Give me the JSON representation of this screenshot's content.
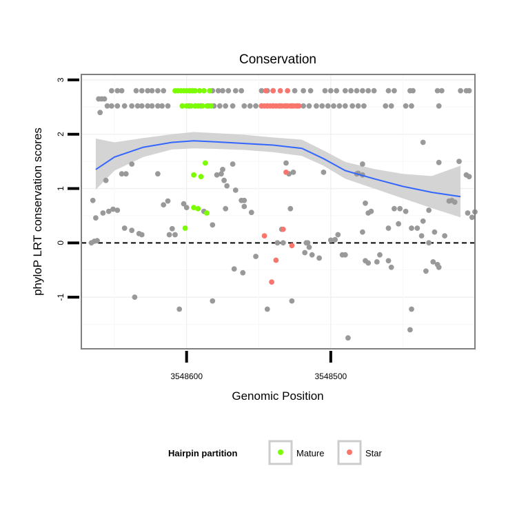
{
  "chart_data": {
    "type": "scatter",
    "title": "Conservation",
    "xlabel": "Genomic Position",
    "ylabel": "phyloP LRT conservation scores",
    "x_reversed": true,
    "xlim": [
      3548673,
      3548400
    ],
    "ylim": [
      -1.95,
      3.1
    ],
    "x_ticks": [
      {
        "value": 3548600,
        "label": "3548600"
      },
      {
        "value": 3548500,
        "label": "3548500"
      }
    ],
    "y_ticks": [
      {
        "value": 3,
        "label": "3"
      },
      {
        "value": 2,
        "label": "2"
      },
      {
        "value": 1,
        "label": "1"
      },
      {
        "value": 0,
        "label": "0"
      },
      {
        "value": -1,
        "label": "-1"
      }
    ],
    "reference_line": {
      "y": 0,
      "style": "dashed"
    },
    "grid": true,
    "colors": {
      "other": "#999999",
      "mature": "#7cfc00",
      "star": "#f8766d",
      "smooth": "#3366ff",
      "ribbon": "#cccccc"
    },
    "legend": {
      "title": "Hairpin partition",
      "placement": "bottom",
      "entries": [
        {
          "label": "Mature",
          "color": "#7cfc00"
        },
        {
          "label": "Star",
          "color": "#f8766d"
        }
      ]
    },
    "smooth": {
      "x": [
        3548663,
        3548650,
        3548630,
        3548610,
        3548595,
        3548580,
        3548560,
        3548540,
        3548520,
        3548505,
        3548490,
        3548470,
        3548450,
        3548430,
        3548410
      ],
      "y": [
        1.35,
        1.58,
        1.76,
        1.85,
        1.88,
        1.86,
        1.83,
        1.8,
        1.74,
        1.55,
        1.33,
        1.18,
        1.04,
        0.93,
        0.85
      ],
      "lower": [
        0.98,
        1.33,
        1.58,
        1.72,
        1.74,
        1.73,
        1.71,
        1.67,
        1.6,
        1.42,
        1.18,
        1.0,
        0.82,
        0.64,
        0.47
      ],
      "upper": [
        1.92,
        1.85,
        1.93,
        2.0,
        2.04,
        2.02,
        1.99,
        1.94,
        1.9,
        1.7,
        1.49,
        1.36,
        1.27,
        1.23,
        1.42
      ]
    },
    "series": [
      {
        "key": "other",
        "points": [
          [
            3548661,
            2.65
          ],
          [
            3548659,
            2.65
          ],
          [
            3548657,
            2.65
          ],
          [
            3548660,
            2.4
          ],
          [
            3548655,
            2.52
          ],
          [
            3548652,
            2.52
          ],
          [
            3548648,
            2.52
          ],
          [
            3548643,
            2.52
          ],
          [
            3548638,
            2.52
          ],
          [
            3548634,
            2.52
          ],
          [
            3548631,
            2.52
          ],
          [
            3548627,
            2.52
          ],
          [
            3548624,
            2.52
          ],
          [
            3548620,
            2.52
          ],
          [
            3548617,
            2.52
          ],
          [
            3548613,
            2.52
          ],
          [
            3548603,
            2.52
          ],
          [
            3548598,
            2.52
          ],
          [
            3548594,
            2.52
          ],
          [
            3548590,
            2.52
          ],
          [
            3548585,
            2.52
          ],
          [
            3548581,
            2.52
          ],
          [
            3548577,
            2.52
          ],
          [
            3548573,
            2.52
          ],
          [
            3548568,
            2.52
          ],
          [
            3548560,
            2.52
          ],
          [
            3548556,
            2.52
          ],
          [
            3548552,
            2.52
          ],
          [
            3548548,
            2.52
          ],
          [
            3548544,
            2.52
          ],
          [
            3548540,
            2.52
          ],
          [
            3548535,
            2.52
          ],
          [
            3548531,
            2.52
          ],
          [
            3548527,
            2.52
          ],
          [
            3548523,
            2.52
          ],
          [
            3548519,
            2.52
          ],
          [
            3548515,
            2.52
          ],
          [
            3548510,
            2.52
          ],
          [
            3548506,
            2.52
          ],
          [
            3548502,
            2.52
          ],
          [
            3548498,
            2.52
          ],
          [
            3548494,
            2.52
          ],
          [
            3548490,
            2.52
          ],
          [
            3548485,
            2.52
          ],
          [
            3548481,
            2.52
          ],
          [
            3548477,
            2.52
          ],
          [
            3548462,
            2.52
          ],
          [
            3548458,
            2.52
          ],
          [
            3548448,
            2.52
          ],
          [
            3548444,
            2.52
          ],
          [
            3548425,
            2.52
          ],
          [
            3548652,
            2.8
          ],
          [
            3548648,
            2.8
          ],
          [
            3548645,
            2.8
          ],
          [
            3548635,
            2.8
          ],
          [
            3548631,
            2.8
          ],
          [
            3548627,
            2.8
          ],
          [
            3548624,
            2.8
          ],
          [
            3548620,
            2.8
          ],
          [
            3548616,
            2.8
          ],
          [
            3548598,
            2.8
          ],
          [
            3548596,
            2.8
          ],
          [
            3548582,
            2.8
          ],
          [
            3548578,
            2.8
          ],
          [
            3548575,
            2.8
          ],
          [
            3548571,
            2.8
          ],
          [
            3548566,
            2.8
          ],
          [
            3548562,
            2.8
          ],
          [
            3548548,
            2.8
          ],
          [
            3548544,
            2.8
          ],
          [
            3548540,
            2.8
          ],
          [
            3548525,
            2.8
          ],
          [
            3548519,
            2.8
          ],
          [
            3548514,
            2.8
          ],
          [
            3548504,
            2.8
          ],
          [
            3548500,
            2.8
          ],
          [
            3548496,
            2.8
          ],
          [
            3548490,
            2.8
          ],
          [
            3548486,
            2.8
          ],
          [
            3548482,
            2.8
          ],
          [
            3548478,
            2.8
          ],
          [
            3548474,
            2.8
          ],
          [
            3548470,
            2.8
          ],
          [
            3548460,
            2.8
          ],
          [
            3548456,
            2.8
          ],
          [
            3548445,
            2.8
          ],
          [
            3548443,
            2.8
          ],
          [
            3548426,
            2.8
          ],
          [
            3548423,
            2.8
          ],
          [
            3548410,
            2.8
          ],
          [
            3548406,
            2.8
          ],
          [
            3548404,
            2.8
          ],
          [
            3548665,
            0.78
          ],
          [
            3548663,
            0.46
          ],
          [
            3548664,
            0.03
          ],
          [
            3548662,
            0.04
          ],
          [
            3548666,
            0.0
          ],
          [
            3548658,
            0.55
          ],
          [
            3548654,
            0.58
          ],
          [
            3548651,
            0.62
          ],
          [
            3548648,
            0.6
          ],
          [
            3548656,
            1.15
          ],
          [
            3548645,
            1.27
          ],
          [
            3548642,
            1.27
          ],
          [
            3548638,
            1.45
          ],
          [
            3548643,
            0.27
          ],
          [
            3548638,
            0.23
          ],
          [
            3548633,
            0.17
          ],
          [
            3548631,
            0.15
          ],
          [
            3548636,
            -1.0
          ],
          [
            3548620,
            1.27
          ],
          [
            3548616,
            0.7
          ],
          [
            3548613,
            0.77
          ],
          [
            3548610,
            0.26
          ],
          [
            3548608,
            0.15
          ],
          [
            3548612,
            0.15
          ],
          [
            3548600,
            0.65
          ],
          [
            3548602,
            0.72
          ],
          [
            3548588,
            0.58
          ],
          [
            3548582,
            0.33
          ],
          [
            3548573,
            0.63
          ],
          [
            3548579,
            1.25
          ],
          [
            3548576,
            1.27
          ],
          [
            3548575,
            1.35
          ],
          [
            3548574,
            1.15
          ],
          [
            3548572,
            1.05
          ],
          [
            3548568,
            1.45
          ],
          [
            3548566,
            0.97
          ],
          [
            3548567,
            -0.48
          ],
          [
            3548562,
            0.78
          ],
          [
            3548560,
            0.78
          ],
          [
            3548560,
            0.67
          ],
          [
            3548555,
            0.56
          ],
          [
            3548561,
            -0.55
          ],
          [
            3548552,
            -0.25
          ],
          [
            3548544,
            -1.22
          ],
          [
            3548537,
            0.0
          ],
          [
            3548533,
            0.0
          ],
          [
            3548534,
            0.25
          ],
          [
            3548531,
            1.47
          ],
          [
            3548529,
            1.27
          ],
          [
            3548526,
            1.3
          ],
          [
            3548528,
            0.63
          ],
          [
            3548527,
            -1.07
          ],
          [
            3548518,
            -0.18
          ],
          [
            3548515,
            -0.08
          ],
          [
            3548513,
            -0.22
          ],
          [
            3548516,
            0.0
          ],
          [
            3548517,
            0.0
          ],
          [
            3548508,
            -0.28
          ],
          [
            3548505,
            1.3
          ],
          [
            3548497,
            0.06
          ],
          [
            3548495,
            0.15
          ],
          [
            3548490,
            -0.22
          ],
          [
            3548492,
            -0.22
          ],
          [
            3548482,
            1.27
          ],
          [
            3548478,
            1.25
          ],
          [
            3548481,
            1.28
          ],
          [
            3548478,
            1.45
          ],
          [
            3548476,
            0.73
          ],
          [
            3548474,
            0.55
          ],
          [
            3548472,
            0.58
          ],
          [
            3548476,
            -0.33
          ],
          [
            3548474,
            -0.37
          ],
          [
            3548468,
            -0.35
          ],
          [
            3548466,
            -0.22
          ],
          [
            3548460,
            -0.33
          ],
          [
            3548458,
            -0.45
          ],
          [
            3548460,
            0.27
          ],
          [
            3548456,
            0.63
          ],
          [
            3548453,
            0.35
          ],
          [
            3548452,
            0.63
          ],
          [
            3548448,
            0.58
          ],
          [
            3548444,
            0.27
          ],
          [
            3548440,
            0.27
          ],
          [
            3548437,
            0.13
          ],
          [
            3548436,
            0.4
          ],
          [
            3548434,
            -0.52
          ],
          [
            3548429,
            -0.35
          ],
          [
            3548426,
            -0.4
          ],
          [
            3548425,
            -0.45
          ],
          [
            3548418,
            0.77
          ],
          [
            3548416,
            0.78
          ],
          [
            3548414,
            0.75
          ],
          [
            3548411,
            1.5
          ],
          [
            3548406,
            1.25
          ],
          [
            3548404,
            1.22
          ],
          [
            3548405,
            0.55
          ],
          [
            3548402,
            0.47
          ],
          [
            3548436,
            1.85
          ],
          [
            3548425,
            1.48
          ],
          [
            3548432,
            0.6
          ],
          [
            3548428,
            0.2
          ],
          [
            3548421,
            0.13
          ],
          [
            3548400,
            0.57
          ],
          [
            3548445,
            -1.6
          ],
          [
            3548444,
            -1.22
          ],
          [
            3548488,
            -1.75
          ],
          [
            3548582,
            -1.07
          ],
          [
            3548605,
            -1.22
          ],
          [
            3548432,
            0.0
          ],
          [
            3548478,
            0.2
          ],
          [
            3548500,
            0.05
          ]
        ]
      },
      {
        "key": "mature",
        "points": [
          [
            3548608,
            2.8
          ],
          [
            3548606,
            2.8
          ],
          [
            3548604,
            2.8
          ],
          [
            3548602,
            2.8
          ],
          [
            3548600,
            2.8
          ],
          [
            3548598,
            2.8
          ],
          [
            3548596,
            2.8
          ],
          [
            3548594,
            2.8
          ],
          [
            3548591,
            2.8
          ],
          [
            3548588,
            2.8
          ],
          [
            3548584,
            2.8
          ],
          [
            3548603,
            2.52
          ],
          [
            3548600,
            2.52
          ],
          [
            3548597,
            2.52
          ],
          [
            3548594,
            2.52
          ],
          [
            3548592,
            2.52
          ],
          [
            3548589,
            2.52
          ],
          [
            3548586,
            2.52
          ],
          [
            3548583,
            2.52
          ],
          [
            3548587,
            1.47
          ],
          [
            3548595,
            1.25
          ],
          [
            3548590,
            1.22
          ],
          [
            3548592,
            0.63
          ],
          [
            3548595,
            0.65
          ],
          [
            3548586,
            0.55
          ],
          [
            3548601,
            0.27
          ]
        ]
      },
      {
        "key": "star",
        "points": [
          [
            3548545,
            2.8
          ],
          [
            3548540,
            2.8
          ],
          [
            3548535,
            2.8
          ],
          [
            3548530,
            2.8
          ],
          [
            3548548,
            2.52
          ],
          [
            3548546,
            2.52
          ],
          [
            3548544,
            2.52
          ],
          [
            3548542,
            2.52
          ],
          [
            3548540,
            2.52
          ],
          [
            3548538,
            2.52
          ],
          [
            3548536,
            2.52
          ],
          [
            3548534,
            2.52
          ],
          [
            3548532,
            2.52
          ],
          [
            3548530,
            2.52
          ],
          [
            3548528,
            2.52
          ],
          [
            3548526,
            2.52
          ],
          [
            3548524,
            2.52
          ],
          [
            3548522,
            2.52
          ],
          [
            3548531,
            1.3
          ],
          [
            3548533,
            0.25
          ],
          [
            3548546,
            0.13
          ],
          [
            3548527,
            -0.05
          ],
          [
            3548538,
            -0.32
          ],
          [
            3548541,
            -0.72
          ]
        ]
      }
    ]
  }
}
